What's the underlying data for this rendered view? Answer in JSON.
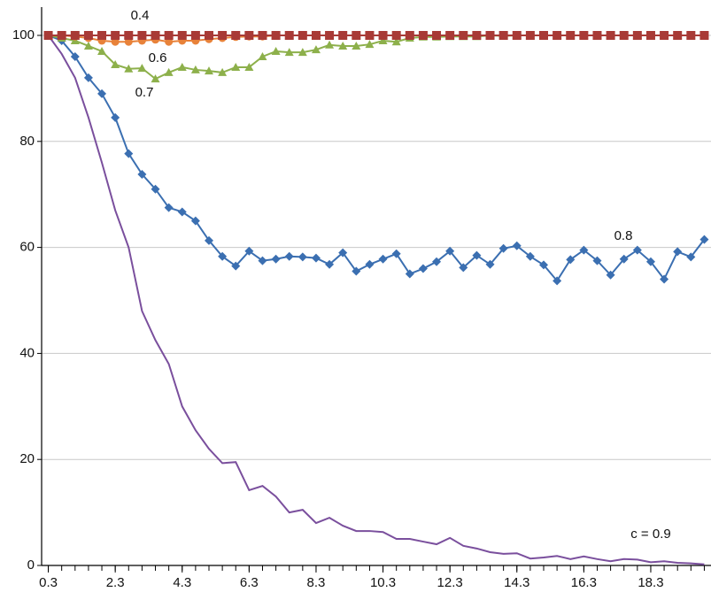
{
  "chart_data": {
    "type": "line",
    "x": [
      0.3,
      0.7,
      1.1,
      1.5,
      1.9,
      2.3,
      2.7,
      3.1,
      3.5,
      3.9,
      4.3,
      4.7,
      5.1,
      5.5,
      5.9,
      6.3,
      6.7,
      7.1,
      7.5,
      7.9,
      8.3,
      8.7,
      9.1,
      9.5,
      9.9,
      10.3,
      10.7,
      11.1,
      11.5,
      11.9,
      12.3,
      12.7,
      13.1,
      13.5,
      13.9,
      14.3,
      14.7,
      15.1,
      15.5,
      15.9,
      16.3,
      16.7,
      17.1,
      17.5,
      17.9,
      18.3,
      18.7,
      19.1,
      19.5,
      19.9
    ],
    "series": [
      {
        "name": "0.4",
        "color": "#a83a36",
        "marker": "square",
        "values": [
          100,
          100,
          100,
          100,
          100,
          100,
          100,
          100,
          100,
          100,
          100,
          100,
          100,
          100,
          100,
          100,
          100,
          100,
          100,
          100,
          100,
          100,
          100,
          100,
          100,
          100,
          100,
          100,
          100,
          100,
          100,
          100,
          100,
          100,
          100,
          100,
          100,
          100,
          100,
          100,
          100,
          100,
          100,
          100,
          100,
          100,
          100,
          100,
          100,
          100
        ]
      },
      {
        "name": "0.6",
        "color": "#e8823a",
        "marker": "circle",
        "values": [
          100,
          100,
          99.8,
          99.5,
          99,
          98.8,
          98.8,
          99,
          99.2,
          98.8,
          99,
          99,
          99.3,
          99.5,
          99.7,
          99.8,
          99.8,
          100,
          100,
          100,
          100,
          100,
          100,
          100,
          100,
          100,
          100,
          100,
          100,
          100,
          100,
          100,
          100,
          100,
          100,
          100,
          100,
          100,
          100,
          100,
          100,
          100,
          100,
          100,
          100,
          100,
          100,
          100,
          100,
          100
        ]
      },
      {
        "name": "0.7",
        "color": "#8db04b",
        "marker": "triangle",
        "values": [
          100,
          99.5,
          99,
          98,
          97,
          94.5,
          93.7,
          93.8,
          91.8,
          93,
          94,
          93.5,
          93.3,
          93,
          94,
          94,
          96,
          97,
          96.8,
          96.8,
          97.3,
          98.2,
          98,
          98,
          98.3,
          99,
          98.8,
          99.5,
          99.7,
          99.7,
          99.8,
          99.8,
          99.8,
          100,
          99.9,
          100,
          100,
          100,
          100,
          100,
          100,
          100,
          100,
          100,
          100,
          100,
          100,
          100,
          100,
          100
        ]
      },
      {
        "name": "0.8",
        "color": "#3b6fb1",
        "marker": "diamond",
        "values": [
          100,
          99,
          96,
          92,
          89,
          84.5,
          77.7,
          73.8,
          71,
          67.5,
          66.7,
          65,
          61.3,
          58.3,
          56.5,
          59.3,
          57.5,
          57.8,
          58.3,
          58.2,
          58,
          56.8,
          59,
          55.5,
          56.8,
          57.8,
          58.8,
          55,
          56,
          57.3,
          59.3,
          56.2,
          58.5,
          56.8,
          59.8,
          60.3,
          58.3,
          56.7,
          53.7,
          57.7,
          59.5,
          57.5,
          54.8,
          57.8,
          59.5,
          57.3,
          54,
          59.2,
          58.2,
          61.5
        ]
      },
      {
        "name": "c = 0.9",
        "color": "#7a4f9d",
        "values": [
          100,
          96.5,
          92,
          84.5,
          76,
          67,
          60,
          48,
          42.5,
          38,
          30,
          25.5,
          22,
          19.3,
          19.5,
          14.2,
          15,
          13,
          10,
          10.5,
          8,
          9,
          7.5,
          6.5,
          6.5,
          6.3,
          5,
          5,
          4.5,
          4,
          5.2,
          3.7,
          3.2,
          2.5,
          2.2,
          2.3,
          1.3,
          1.5,
          1.8,
          1.2,
          1.7,
          1.2,
          0.8,
          1.2,
          1.1,
          0.6,
          0.8,
          0.5,
          0.4,
          0.2
        ]
      }
    ],
    "xlim": [
      0.1,
      20.1
    ],
    "xticks": [
      0.3,
      2.3,
      4.3,
      6.3,
      8.3,
      10.3,
      12.3,
      14.3,
      16.3,
      18.3
    ],
    "ylim": [
      0,
      100
    ],
    "yticks": [
      0,
      20,
      40,
      60,
      80,
      100
    ],
    "grid": true
  }
}
